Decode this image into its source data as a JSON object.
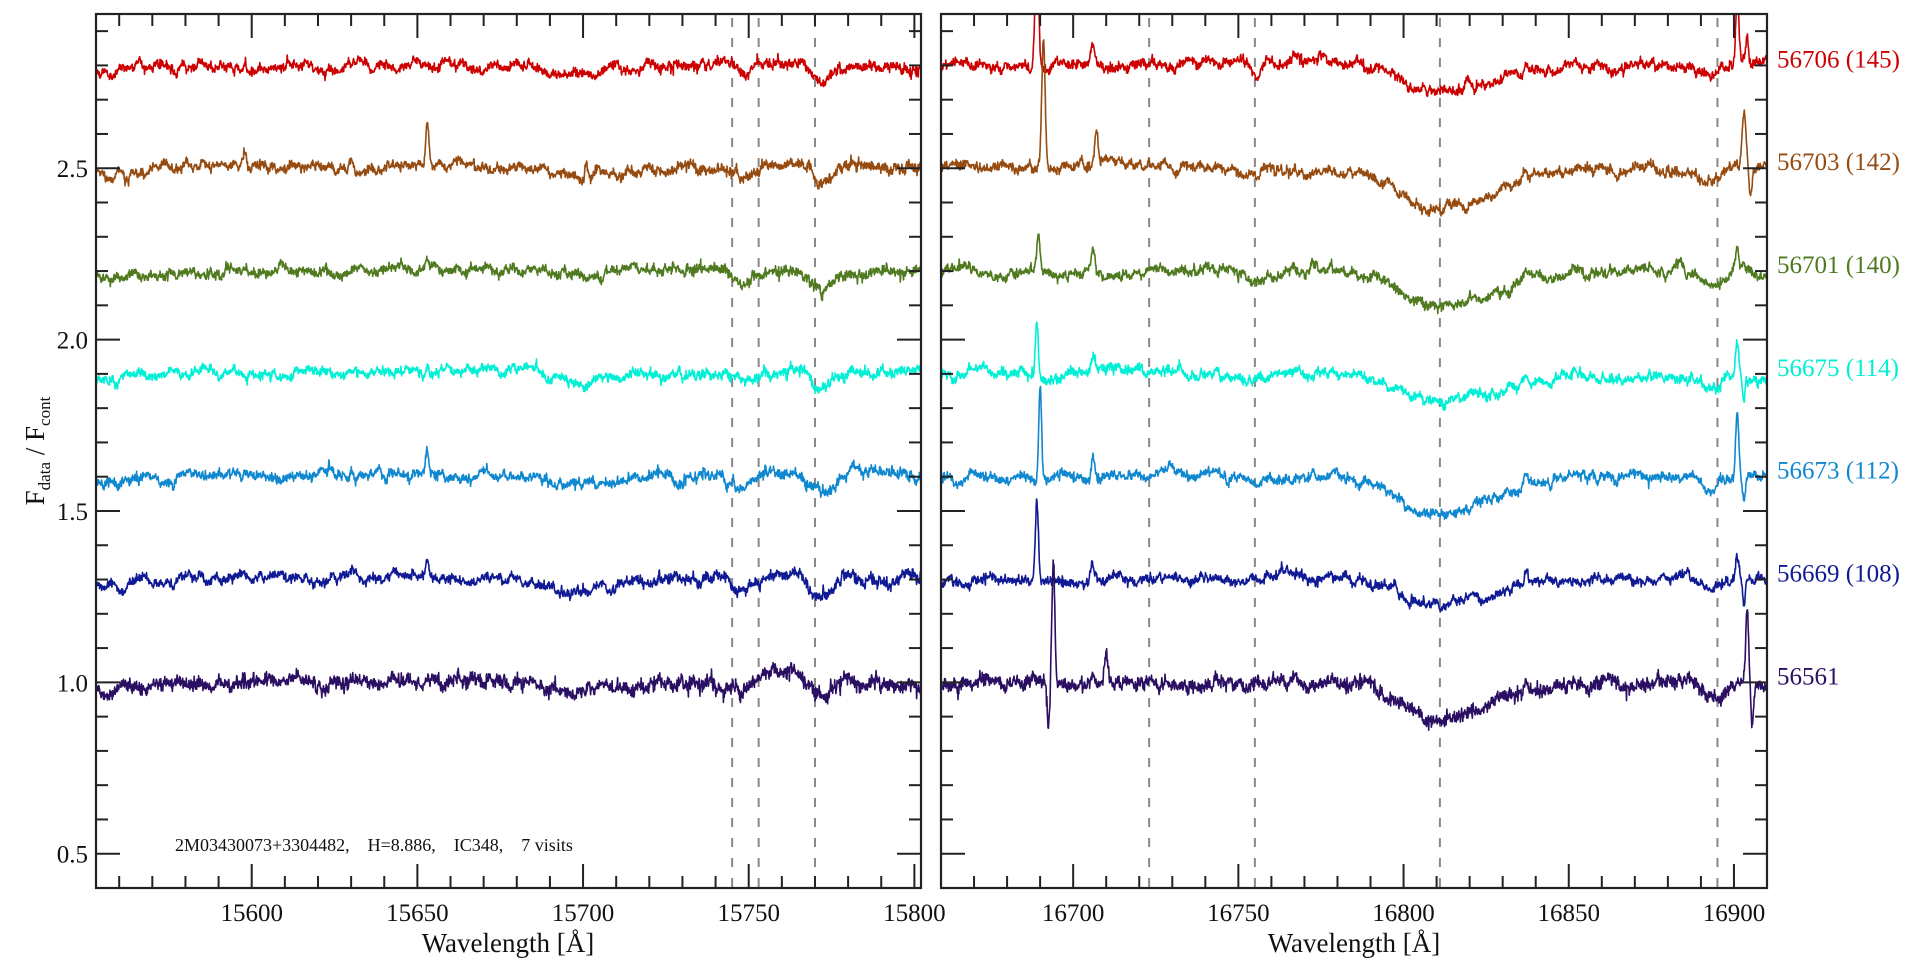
{
  "chart_data": {
    "type": "line",
    "xlabel": "Wavelength [Å]",
    "ylabel": {
      "f1": "F",
      "sub1": "data",
      "sep": " / ",
      "f2": "F",
      "sub2": "cont"
    },
    "ylim": [
      0.4,
      2.95
    ],
    "yticks": [
      0.5,
      1.0,
      1.5,
      2.0,
      2.5
    ],
    "ytick_labels": [
      "0.5",
      "1.0",
      "1.5",
      "2.0",
      "2.5"
    ],
    "y_minor_step": 0.1,
    "x_minor_step": 10,
    "grid": false,
    "annotation": "2M03430073+3304482,    H=8.886,    IC348,    7 visits",
    "panels": [
      {
        "xlim": [
          15553,
          15802
        ],
        "xticks": [
          15600,
          15650,
          15700,
          15750,
          15800
        ],
        "xtick_labels": [
          "15600",
          "15650",
          "15700",
          "15750",
          "15800"
        ],
        "dashed_lines": [
          15745,
          15753,
          15770
        ],
        "common_features": [
          {
            "center": 15558,
            "amp": -0.02,
            "sigma": 5
          },
          {
            "center": 15700,
            "amp": -0.025,
            "sigma": 8
          },
          {
            "center": 15748,
            "amp": -0.03,
            "sigma": 2.2
          },
          {
            "center": 15762,
            "amp": 0.012,
            "sigma": 3
          },
          {
            "center": 15772,
            "amp": -0.045,
            "sigma": 2.5
          }
        ]
      },
      {
        "xlim": [
          16660,
          16910
        ],
        "xticks": [
          16700,
          16750,
          16800,
          16850,
          16900
        ],
        "xtick_labels": [
          "16700",
          "16750",
          "16800",
          "16850",
          "16900"
        ],
        "dashed_lines": [
          16723,
          16755,
          16811,
          16895
        ],
        "common_features": [
          {
            "center": 16809,
            "amp": -0.1,
            "sigma": 10,
            "sigma_red": 18
          },
          {
            "center": 16755,
            "amp": -0.012,
            "sigma": 3
          },
          {
            "center": 16893,
            "amp": -0.035,
            "sigma": 3
          },
          {
            "center": 16837,
            "amp": 0.03,
            "sigma": 0.6
          }
        ]
      }
    ],
    "series": [
      {
        "label": "56706 (145)",
        "color": "#cc0000",
        "offset": 2.8,
        "left": [
          {
            "center": 15653,
            "amp": 0.01,
            "sigma": 0.6
          },
          {
            "center": 15598,
            "amp": 0.02,
            "sigma": 0.6
          }
        ],
        "right": [
          {
            "center": 16689,
            "amp": 0.45,
            "sigma": 0.5
          },
          {
            "center": 16706,
            "amp": 0.06,
            "sigma": 0.8
          },
          {
            "center": 16901,
            "amp": 0.2,
            "sigma": 0.5
          },
          {
            "center": 16904,
            "amp": 0.08,
            "sigma": 0.4
          }
        ],
        "dip_depth": 0.08
      },
      {
        "label": "56703 (142)",
        "color": "#964b10",
        "offset": 2.5,
        "left": [
          {
            "center": 15653,
            "amp": 0.14,
            "sigma": 0.45
          },
          {
            "center": 15598,
            "amp": 0.04,
            "sigma": 0.5
          },
          {
            "center": 15630,
            "amp": 0.03,
            "sigma": 0.6
          },
          {
            "center": 15701,
            "amp": 0.04,
            "sigma": 0.4
          }
        ],
        "right": [
          {
            "center": 16691,
            "amp": 0.38,
            "sigma": 0.5
          },
          {
            "center": 16707,
            "amp": 0.11,
            "sigma": 0.5
          },
          {
            "center": 16903,
            "amp": 0.18,
            "sigma": 0.6
          },
          {
            "center": 16905,
            "amp": -0.1,
            "sigma": 0.4
          }
        ],
        "dip_depth": 0.12
      },
      {
        "label": "56701 (140)",
        "color": "#4f7a1f",
        "offset": 2.2,
        "left": [
          {
            "center": 15653,
            "amp": 0.025,
            "sigma": 0.5
          },
          {
            "center": 15598,
            "amp": 0.025,
            "sigma": 0.5
          }
        ],
        "right": [
          {
            "center": 16689.5,
            "amp": 0.11,
            "sigma": 0.5
          },
          {
            "center": 16706,
            "amp": 0.07,
            "sigma": 0.6
          },
          {
            "center": 16901,
            "amp": 0.07,
            "sigma": 0.5
          }
        ],
        "dip_depth": 0.1
      },
      {
        "label": "56675 (114)",
        "color": "#00f0d6",
        "offset": 1.9,
        "left": [
          {
            "center": 15653,
            "amp": 0.05,
            "sigma": 0.5
          }
        ],
        "right": [
          {
            "center": 16689,
            "amp": 0.16,
            "sigma": 0.45
          },
          {
            "center": 16706,
            "amp": 0.04,
            "sigma": 0.6
          },
          {
            "center": 16901,
            "amp": 0.1,
            "sigma": 0.5
          },
          {
            "center": 16903,
            "amp": -0.07,
            "sigma": 0.4
          }
        ],
        "dip_depth": 0.08
      },
      {
        "label": "56673 (112)",
        "color": "#1088d0",
        "offset": 1.6,
        "left": [
          {
            "center": 15653,
            "amp": 0.08,
            "sigma": 0.45
          },
          {
            "center": 15630,
            "amp": 0.02,
            "sigma": 0.5
          }
        ],
        "right": [
          {
            "center": 16690,
            "amp": 0.28,
            "sigma": 0.45
          },
          {
            "center": 16706,
            "amp": 0.07,
            "sigma": 0.5
          },
          {
            "center": 16901,
            "amp": 0.2,
            "sigma": 0.5
          },
          {
            "center": 16903,
            "amp": -0.06,
            "sigma": 0.4
          }
        ],
        "dip_depth": 0.11
      },
      {
        "label": "56669 (108)",
        "color": "#101a94",
        "offset": 1.3,
        "left": [
          {
            "center": 15653,
            "amp": 0.05,
            "sigma": 0.45
          },
          {
            "center": 15598,
            "amp": 0.02,
            "sigma": 0.6
          }
        ],
        "right": [
          {
            "center": 16689,
            "amp": 0.23,
            "sigma": 0.5
          },
          {
            "center": 16706,
            "amp": 0.05,
            "sigma": 0.7
          },
          {
            "center": 16901,
            "amp": 0.06,
            "sigma": 0.5
          },
          {
            "center": 16903,
            "amp": -0.08,
            "sigma": 0.4
          }
        ],
        "dip_depth": 0.08
      },
      {
        "label": "56561",
        "color": "#2a0f62",
        "offset": 1.0,
        "left": [
          {
            "center": 15653,
            "amp": 0.02,
            "sigma": 0.6
          }
        ],
        "right": [
          {
            "center": 16692.5,
            "amp": -0.13,
            "sigma": 0.4
          },
          {
            "center": 16694,
            "amp": 0.35,
            "sigma": 0.45
          },
          {
            "center": 16710,
            "amp": 0.08,
            "sigma": 0.6
          },
          {
            "center": 16904,
            "amp": 0.22,
            "sigma": 0.45
          },
          {
            "center": 16905.5,
            "amp": -0.12,
            "sigma": 0.4
          }
        ],
        "dip_depth": 0.11
      }
    ]
  }
}
